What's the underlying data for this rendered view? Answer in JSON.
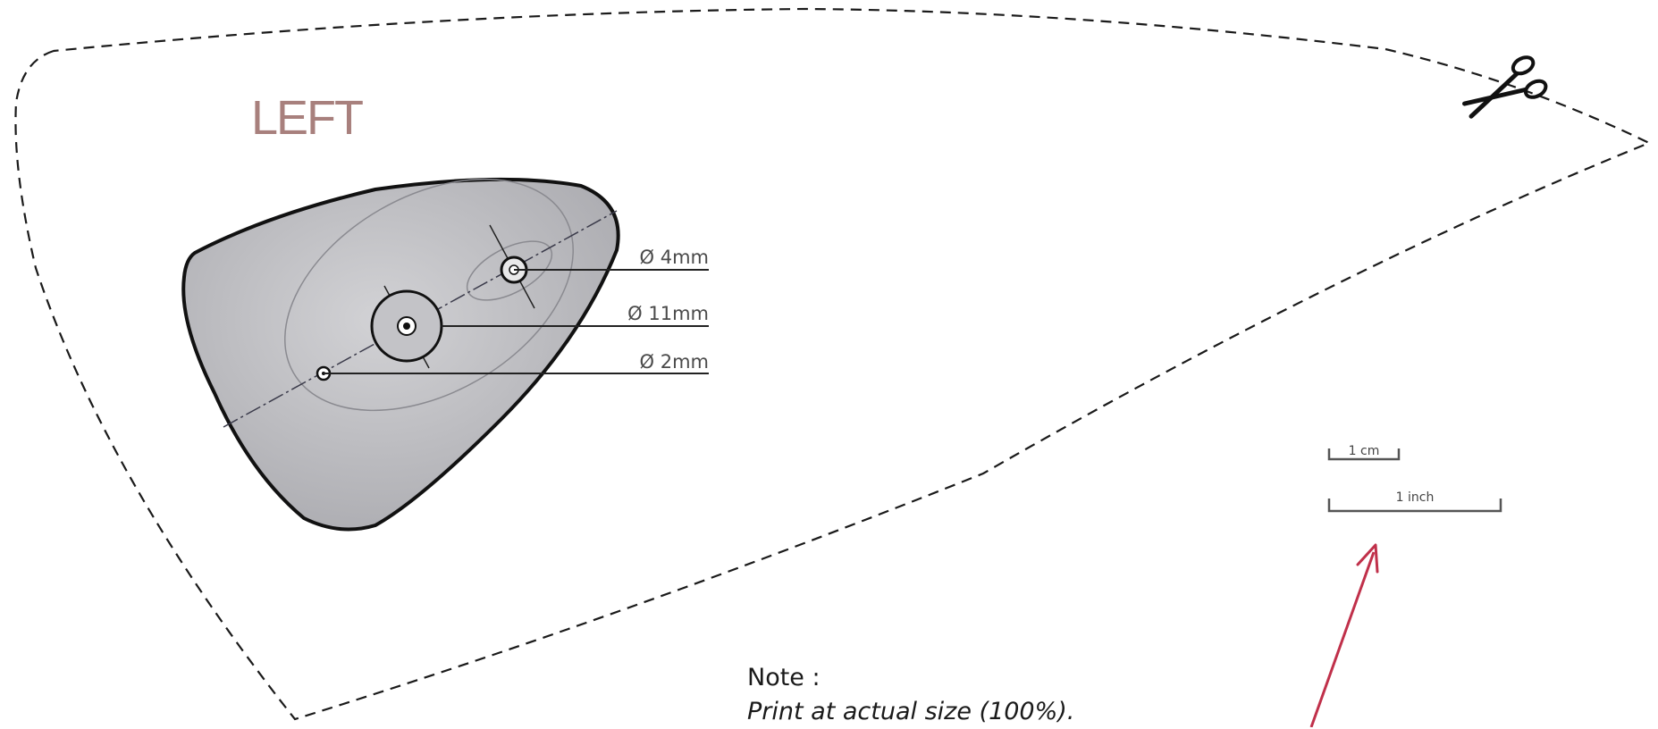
{
  "template": {
    "side_label": "LEFT",
    "holes": [
      {
        "label": "Ø 4mm"
      },
      {
        "label": "Ø 11mm"
      },
      {
        "label": "Ø 2mm"
      }
    ],
    "scale": {
      "cm_label": "1 cm",
      "inch_label": "1 inch"
    },
    "note": {
      "title": "Note :",
      "body": "Print at actual size (100%)."
    }
  },
  "icons": {
    "cut_marker": "scissors-icon",
    "pointer": "arrow-icon"
  },
  "colors": {
    "side_label": "#a8807d",
    "arrow": "#c0304a",
    "part_fill": "#b9b9bd",
    "outline": "#111111"
  }
}
